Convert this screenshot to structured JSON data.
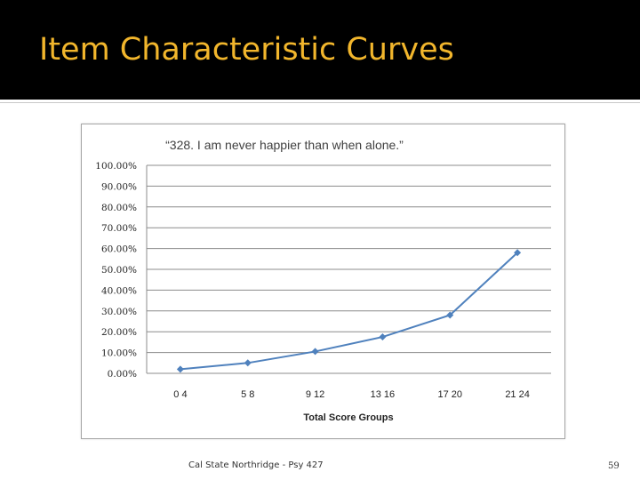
{
  "slide": {
    "title": "Item Characteristic Curves",
    "footer": "Cal State Northridge - Psy 427",
    "page_number": "59"
  },
  "colors": {
    "title_bar": "#000000",
    "title_text": "#f2b62c",
    "series_line": "#4f81bd"
  },
  "chart_data": {
    "type": "line",
    "title": "“328. I am never happier than when alone.”",
    "xlabel": "Total Score Groups",
    "ylabel": "",
    "categories": [
      "0-4",
      "5-8",
      "9-12",
      "13-16",
      "17-20",
      "21-24"
    ],
    "series": [
      {
        "values": [
          0.02,
          0.05,
          0.105,
          0.175,
          0.28,
          0.58
        ]
      }
    ],
    "ylim": [
      0,
      1
    ],
    "yticks": [
      "0.00%",
      "10.00%",
      "20.00%",
      "30.00%",
      "40.00%",
      "50.00%",
      "60.00%",
      "70.00%",
      "80.00%",
      "90.00%",
      "100.00%"
    ],
    "grid": true,
    "legend": "none",
    "marker": "diamond"
  }
}
